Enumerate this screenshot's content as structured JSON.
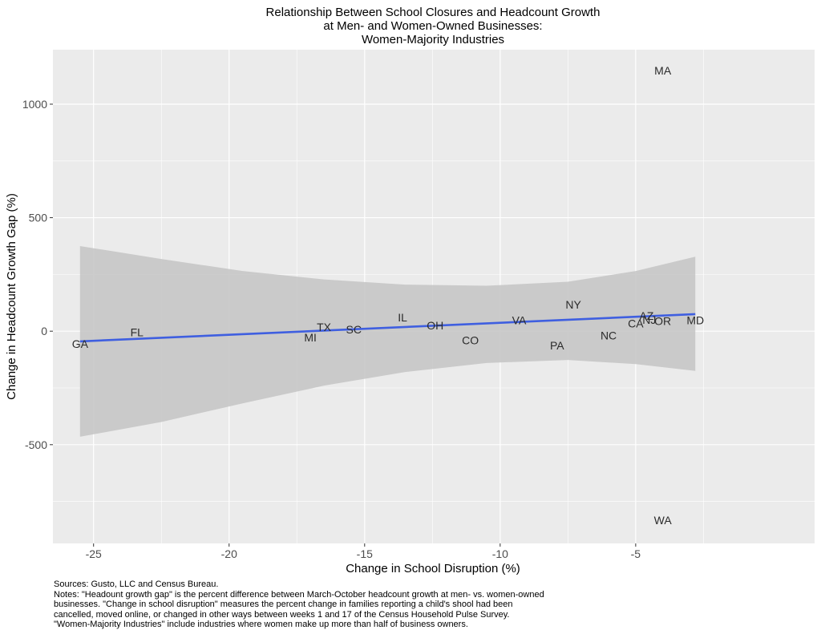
{
  "chart_data": {
    "type": "scatter",
    "title": [
      "Relationship Between School Closures and Headcount Growth",
      "at Men- and Women-Owned Businesses:",
      "Women-Majority Industries"
    ],
    "xlabel": "Change in School Disruption (%)",
    "ylabel": "Change in Headcount Growth Gap (%)",
    "xlim": [
      -26.5,
      1.6
    ],
    "ylim": [
      -935,
      1240
    ],
    "xticks": [
      -25,
      -20,
      -15,
      -10,
      -5
    ],
    "yticks": [
      -500,
      0,
      500,
      1000
    ],
    "grid": true,
    "points": [
      {
        "label": "GA",
        "x": -25.5,
        "y": -55
      },
      {
        "label": "FL",
        "x": -23.4,
        "y": -5
      },
      {
        "label": "MI",
        "x": -17.0,
        "y": -28
      },
      {
        "label": "TX",
        "x": -16.5,
        "y": 18
      },
      {
        "label": "SC",
        "x": -15.4,
        "y": 8
      },
      {
        "label": "IL",
        "x": -13.6,
        "y": 60
      },
      {
        "label": "OH",
        "x": -12.4,
        "y": 25
      },
      {
        "label": "CO",
        "x": -11.1,
        "y": -40
      },
      {
        "label": "VA",
        "x": -9.3,
        "y": 48
      },
      {
        "label": "NY",
        "x": -7.3,
        "y": 118
      },
      {
        "label": "PA",
        "x": -7.9,
        "y": -62
      },
      {
        "label": "NC",
        "x": -6.0,
        "y": -18
      },
      {
        "label": "CA",
        "x": -5.0,
        "y": 35
      },
      {
        "label": "AZ",
        "x": -4.6,
        "y": 68
      },
      {
        "label": "NJ",
        "x": -4.5,
        "y": 50
      },
      {
        "label": "OR",
        "x": -4.0,
        "y": 45
      },
      {
        "label": "MD",
        "x": -2.8,
        "y": 48
      },
      {
        "label": "MA",
        "x": -4.0,
        "y": 1148
      },
      {
        "label": "WA",
        "x": -4.0,
        "y": -832
      }
    ],
    "fit_line": {
      "x": [
        -25.5,
        -2.8
      ],
      "y": [
        -45,
        75
      ]
    },
    "confidence_band": {
      "x": [
        -25.5,
        -22.5,
        -19.5,
        -16.5,
        -13.5,
        -10.5,
        -7.5,
        -5.0,
        -2.8
      ],
      "upper": [
        375,
        318,
        265,
        228,
        205,
        200,
        218,
        265,
        328
      ],
      "lower": [
        -465,
        -400,
        -318,
        -240,
        -180,
        -140,
        -127,
        -145,
        -175
      ]
    },
    "colors": {
      "panel": "#ebebeb",
      "grid_major": "#ffffff",
      "fit_line": "#3f5fe0",
      "band": "#c7c7c7",
      "text": "#2b2b2b"
    }
  },
  "notes": [
    "Sources: Gusto, LLC and Census Bureau.",
    "Notes: \"Headount growth gap\" is the percent difference between March-October headcount growth at men- vs. women-owned",
    "businesses. \"Change in school disruption\" measures the percent  change in families reporting a child's shool had been",
    "cancelled, moved online, or changed in other ways between weeks 1 and 17 of the Census Household Pulse Survey.",
    "\"Women-Majority Industries\" include industries where women make up more than half of business owners."
  ]
}
